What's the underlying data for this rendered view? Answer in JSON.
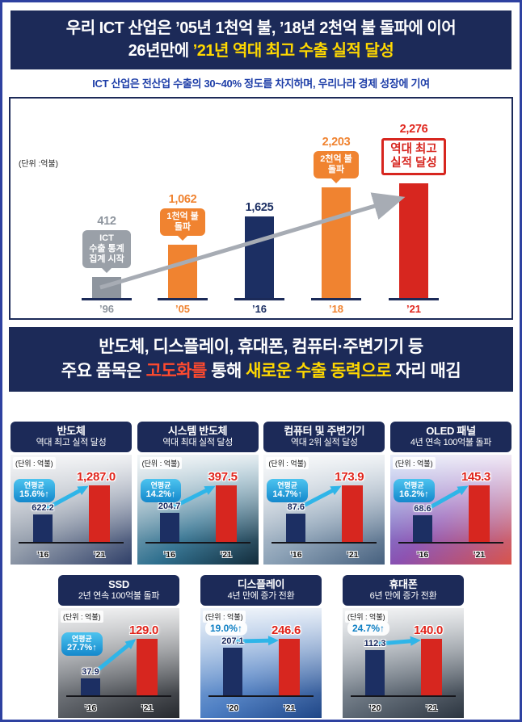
{
  "colors": {
    "navy_banner": "#1c2a58",
    "navy_bar": "#1c2f63",
    "orange": "#f08330",
    "red": "#d7261f",
    "red_text": "#e0251c",
    "yellow": "#ffd800",
    "blue_subtitle": "#1e3ea8",
    "cyan": "#2fb5e8",
    "gray": "#8e959e"
  },
  "header": {
    "line1": "우리 ICT 산업은 ’05년 1천억 불, ’18년 2천억 불 돌파에 이어",
    "line2_white": "26년만에 ",
    "line2_yellow": "’21년 역대 최고 수출 실적 달성",
    "subtitle": "ICT 산업은 전산업 수출의 30~40% 정도를 차지하며, 우리나라 경제 성장에 기여"
  },
  "section2": {
    "line1": "반도체, 디스플레이, 휴대폰, 컴퓨터·주변기기  등",
    "line2_white1": "주요 품목은 ",
    "line2_red": "고도화를",
    "line2_white2": " 통해 ",
    "line2_yellow": "새로운 수출 동력으로",
    "line2_white3": " 자리 매김"
  },
  "chart_data": [
    {
      "id": "ict-export-trend",
      "type": "bar",
      "unit_label": "(단위 :억불)",
      "categories": [
        "’96",
        "’05",
        "’16",
        "’18",
        "’21"
      ],
      "values": [
        412,
        1062,
        1625,
        2203,
        2276
      ],
      "value_labels": [
        "412",
        "1,062",
        "1,625",
        "2,203",
        "2,276"
      ],
      "bar_colors": [
        "#8e959e",
        "#f08330",
        "#1c2f63",
        "#f08330",
        "#d7261f"
      ],
      "ylim": [
        0,
        2400
      ],
      "grid": false,
      "legend": "none",
      "annotations": [
        {
          "target": "’96",
          "style": "gray-bubble",
          "lines": [
            "ICT",
            "수출 통계",
            "집계 시작"
          ]
        },
        {
          "target": "’05",
          "style": "orange-bubble",
          "lines": [
            "1천억 불",
            "돌파"
          ]
        },
        {
          "target": "’18",
          "style": "orange-bubble",
          "lines": [
            "2천억 불",
            "돌파"
          ]
        },
        {
          "target": "’21",
          "style": "red-outline-box",
          "lines": [
            "역대 최고",
            "실적 달성"
          ]
        }
      ]
    },
    {
      "id": "semiconductor",
      "type": "bar",
      "title": "반도체",
      "subtitle": "역대 최고 실적 달성",
      "unit_label": "(단위 : 억불)",
      "categories": [
        "’16",
        "’21"
      ],
      "values": [
        622.2,
        1287.0
      ],
      "value_labels": [
        "622.2",
        "1,287.0"
      ],
      "growth_label": "연평균",
      "growth_value": "15.6%↑",
      "bar_colors": [
        "#1c2f63",
        "#d7261f"
      ],
      "photo": "semiconductor-chip-photo"
    },
    {
      "id": "system-semiconductor",
      "type": "bar",
      "title": "시스템 반도체",
      "subtitle": "역대 최대 실적 달성",
      "unit_label": "(단위 : 억불)",
      "categories": [
        "’16",
        "’21"
      ],
      "values": [
        204.7,
        397.5
      ],
      "value_labels": [
        "204.7",
        "397.5"
      ],
      "growth_label": "연평균",
      "growth_value": "14.2%↑",
      "bar_colors": [
        "#1c2f63",
        "#d7261f"
      ],
      "photo": "silicon-wafer-photo"
    },
    {
      "id": "computer-peripherals",
      "type": "bar",
      "title": "컴퓨터 및 주변기기",
      "subtitle": "역대 2위 실적 달성",
      "unit_label": "(단위 : 억불)",
      "categories": [
        "’16",
        "’21"
      ],
      "values": [
        87.6,
        173.9
      ],
      "value_labels": [
        "87.6",
        "173.9"
      ],
      "growth_label": "연평균",
      "growth_value": "14.7%↑",
      "bar_colors": [
        "#1c2f63",
        "#d7261f"
      ],
      "photo": "computer-photo"
    },
    {
      "id": "oled-panel",
      "type": "bar",
      "title": "OLED 패널",
      "subtitle": "4년 연속 100억불 돌파",
      "unit_label": "(단위 : 억불)",
      "categories": [
        "’16",
        "’21"
      ],
      "values": [
        68.6,
        145.3
      ],
      "value_labels": [
        "68.6",
        "145.3"
      ],
      "growth_label": "연평균",
      "growth_value": "16.2%↑",
      "bar_colors": [
        "#1c2f63",
        "#d7261f"
      ],
      "photo": "oled-panel-photo"
    },
    {
      "id": "ssd",
      "type": "bar",
      "title": "SSD",
      "subtitle": "2년 연속 100억불 돌파",
      "unit_label": "(단위 : 억불)",
      "categories": [
        "’16",
        "’21"
      ],
      "values": [
        37.9,
        129.0
      ],
      "value_labels": [
        "37.9",
        "129.0"
      ],
      "growth_label": "연평균",
      "growth_value": "27.7%↑",
      "bar_colors": [
        "#1c2f63",
        "#d7261f"
      ],
      "photo": "ssd-photo"
    },
    {
      "id": "display",
      "type": "bar",
      "title": "디스플레이",
      "subtitle": "4년 만에 증가 전환",
      "unit_label": "(단위 : 억불)",
      "categories": [
        "’20",
        "’21"
      ],
      "values": [
        207.1,
        246.6
      ],
      "value_labels": [
        "207.1",
        "246.6"
      ],
      "growth_label": "",
      "growth_value": "19.0%↑",
      "bar_colors": [
        "#1c2f63",
        "#d7261f"
      ],
      "photo": "display-panel-photo"
    },
    {
      "id": "mobile-phone",
      "type": "bar",
      "title": "휴대폰",
      "subtitle": "6년 만에 증가 전환",
      "unit_label": "(단위 : 억불)",
      "categories": [
        "’20",
        "’21"
      ],
      "values": [
        112.3,
        140.0
      ],
      "value_labels": [
        "112.3",
        "140.0"
      ],
      "growth_label": "",
      "growth_value": "24.7%↑",
      "bar_colors": [
        "#1c2f63",
        "#d7261f"
      ],
      "photo": "smartphone-photo"
    }
  ]
}
